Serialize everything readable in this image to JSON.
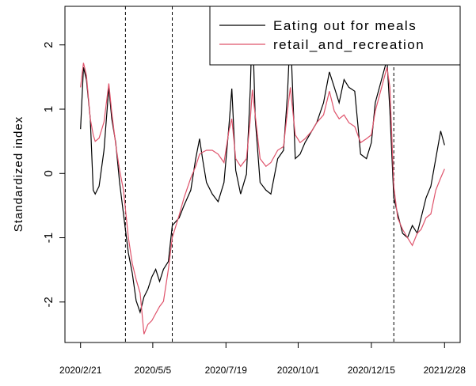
{
  "chart_data": {
    "type": "line",
    "y_label": "Standardized index",
    "x": [
      "2020-02-21",
      "2020-02-24",
      "2020-02-27",
      "2020-03-02",
      "2020-03-05",
      "2020-03-07",
      "2020-03-11",
      "2020-03-16",
      "2020-03-21",
      "2020-03-24",
      "2020-03-28",
      "2020-04-01",
      "2020-04-05",
      "2020-04-10",
      "2020-04-14",
      "2020-04-18",
      "2020-04-22",
      "2020-04-26",
      "2020-04-30",
      "2020-05-04",
      "2020-05-08",
      "2020-05-12",
      "2020-05-16",
      "2020-05-21",
      "2020-05-25",
      "2020-06-01",
      "2020-06-06",
      "2020-06-13",
      "2020-06-18",
      "2020-06-22",
      "2020-06-25",
      "2020-06-29",
      "2020-07-05",
      "2020-07-11",
      "2020-07-17",
      "2020-07-22",
      "2020-07-25",
      "2020-07-29",
      "2020-08-03",
      "2020-08-09",
      "2020-08-13",
      "2020-08-15",
      "2020-08-18",
      "2020-08-23",
      "2020-08-29",
      "2020-09-03",
      "2020-09-10",
      "2020-09-16",
      "2020-09-20",
      "2020-09-23",
      "2020-09-28",
      "2020-10-03",
      "2020-10-08",
      "2020-10-15",
      "2020-10-20",
      "2020-10-27",
      "2020-11-02",
      "2020-11-07",
      "2020-11-12",
      "2020-11-17",
      "2020-11-22",
      "2020-11-28",
      "2020-12-04",
      "2020-12-10",
      "2020-12-15",
      "2020-12-19",
      "2020-12-31",
      "2021-01-03",
      "2021-01-07",
      "2021-01-11",
      "2021-01-16",
      "2021-01-21",
      "2021-01-26",
      "2021-01-31",
      "2021-02-04",
      "2021-02-09",
      "2021-02-14",
      "2021-02-19",
      "2021-02-24",
      "2021-02-28"
    ],
    "series": [
      {
        "name": "Eating out for meals",
        "color": "#000000",
        "values": [
          0.69,
          1.65,
          1.46,
          0.85,
          -0.26,
          -0.32,
          -0.2,
          0.36,
          1.34,
          0.85,
          0.48,
          -0.14,
          -0.63,
          -1.24,
          -1.55,
          -1.98,
          -2.16,
          -1.92,
          -1.8,
          -1.61,
          -1.49,
          -1.68,
          -1.49,
          -1.37,
          -0.81,
          -0.69,
          -0.5,
          -0.26,
          0.23,
          0.54,
          0.23,
          -0.14,
          -0.32,
          -0.44,
          -0.14,
          0.73,
          1.32,
          0.05,
          -0.32,
          -0.01,
          1.34,
          2.42,
          0.85,
          -0.14,
          -0.26,
          -0.32,
          0.23,
          0.36,
          1.22,
          2.23,
          0.23,
          0.3,
          0.48,
          0.66,
          0.79,
          1.1,
          1.58,
          1.34,
          1.1,
          1.46,
          1.34,
          1.28,
          0.3,
          0.23,
          0.48,
          1.1,
          1.77,
          0.97,
          -0.38,
          -0.63,
          -0.93,
          -1.0,
          -0.81,
          -0.93,
          -0.69,
          -0.38,
          -0.2,
          0.23,
          0.66,
          0.44
        ]
      },
      {
        "name": "retail_and_recreation",
        "color": "#DF536B",
        "values": [
          1.34,
          1.72,
          1.53,
          0.85,
          0.6,
          0.5,
          0.55,
          0.8,
          1.4,
          0.95,
          0.45,
          0.05,
          -0.26,
          -1.0,
          -1.4,
          -1.65,
          -1.86,
          -2.5,
          -2.35,
          -2.29,
          -2.18,
          -2.07,
          -1.99,
          -1.49,
          -1.0,
          -0.65,
          -0.38,
          -0.07,
          0.11,
          0.3,
          0.33,
          0.36,
          0.36,
          0.3,
          0.17,
          0.66,
          0.85,
          0.23,
          0.11,
          0.23,
          0.85,
          1.3,
          0.9,
          0.23,
          0.11,
          0.17,
          0.36,
          0.42,
          0.97,
          1.34,
          0.6,
          0.48,
          0.54,
          0.66,
          0.79,
          0.91,
          1.28,
          0.97,
          0.85,
          0.91,
          0.79,
          0.73,
          0.48,
          0.54,
          0.6,
          0.97,
          1.65,
          1.34,
          -0.2,
          -0.69,
          -0.87,
          -1.0,
          -1.12,
          -0.93,
          -0.87,
          -0.69,
          -0.63,
          -0.26,
          -0.07,
          0.07
        ]
      }
    ],
    "vlines": [
      "2020-04-07",
      "2020-05-25",
      "2021-01-07"
    ],
    "xlim": [
      "2020-02-05",
      "2021-03-16"
    ],
    "xticks": [
      {
        "value": "2020-02-21",
        "label": "2020/2/21"
      },
      {
        "value": "2020-05-05",
        "label": "2020/5/5"
      },
      {
        "value": "2020-07-19",
        "label": "2020/7/19"
      },
      {
        "value": "2020-10-01",
        "label": "2020/10/1"
      },
      {
        "value": "2020-12-15",
        "label": "2020/12/15"
      },
      {
        "value": "2021-02-28",
        "label": "2021/2/28"
      }
    ],
    "ylim": [
      -2.63,
      2.6
    ],
    "yticks": [
      -2,
      -1,
      0,
      1,
      2
    ],
    "legend": "top-right"
  }
}
